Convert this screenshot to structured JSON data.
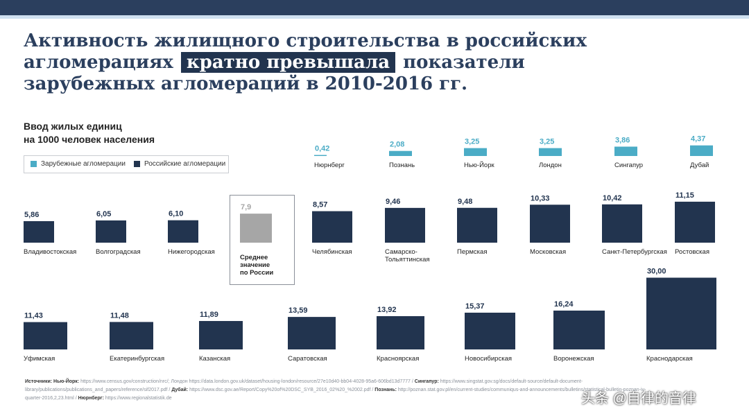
{
  "title": {
    "part1": "Активность жилищного строительства в российских агломерациях",
    "highlight": "кратно превышала",
    "part2": "показатели зарубежных агломераций в 2010-2016 гг."
  },
  "subtitle_line1": "Ввод жилых единиц",
  "subtitle_line2": "на 1000 человек населения",
  "colors": {
    "foreign": "#4bacc6",
    "russian": "#22344f",
    "average": "#a6a6a6"
  },
  "legend": {
    "foreign": "Зарубежные агломерации",
    "russian": "Российские агломерации"
  },
  "chart_data": {
    "type": "bar",
    "y_label": "Ввод жилых единиц на 1000 человек населения",
    "series": [
      {
        "name": "Зарубежные агломерации",
        "categories": [
          "Нюрнберг",
          "Познань",
          "Нью-Йорк",
          "Лондон",
          "Сингапур",
          "Дубай"
        ],
        "values": [
          0.42,
          2.08,
          3.25,
          3.25,
          3.86,
          4.37
        ],
        "labels": [
          "0,42",
          "2,08",
          "3,25",
          "3,25",
          "3,86",
          "4,37"
        ]
      },
      {
        "name": "Среднее значение по России",
        "categories": [
          "Среднее значение по России"
        ],
        "values": [
          7.9
        ],
        "labels": [
          "7,9"
        ]
      },
      {
        "name": "Российские агломерации",
        "categories": [
          "Владивостокская",
          "Волгоградская",
          "Нижегородская",
          "Челябинская",
          "Самарско-Тольяттинская",
          "Пермская",
          "Московская",
          "Санкт-Петербургская",
          "Ростовская",
          "Уфимская",
          "Екатеринбургская",
          "Казанская",
          "Саратовская",
          "Красноярская",
          "Новосибирская",
          "Воронежская",
          "Краснодарская"
        ],
        "values": [
          5.86,
          6.05,
          6.1,
          8.57,
          9.46,
          9.48,
          10.33,
          10.42,
          11.15,
          11.43,
          11.48,
          11.89,
          13.59,
          13.92,
          15.37,
          16.24,
          30.0
        ],
        "labels": [
          "5,86",
          "6,05",
          "6,10",
          "8,57",
          "9,46",
          "9,48",
          "10,33",
          "10,42",
          "11,15",
          "11,43",
          "11,48",
          "11,89",
          "13,59",
          "13,92",
          "15,37",
          "16,24",
          "30,00"
        ]
      }
    ],
    "average_label": [
      "Среднее",
      "значение",
      "по России"
    ]
  },
  "sources": [
    {
      "label": "Источники:",
      "text": ""
    },
    {
      "label": "Нью-Йорк:",
      "text": "https://www.census.gov/construction/nrc/; Лондон https://data.london.gov.uk/dataset/housing-london/resource/27e10d40-bb04-4028-95a6-606bd13d7777 /"
    },
    {
      "label": "Сингапур:",
      "text": "https://www.singstat.gov.sg/docs/default-source/default-document-library/publications/publications_and_papers/reference/sif2017.pdf /"
    },
    {
      "label": "Дубай:",
      "text": "https://www.dsc.gov.ae/Report/Copy%20of%20DSC_SYB_2016_02%20_%2002.pdf /"
    },
    {
      "label": "Познань:",
      "text": "http://poznan.stat.gov.pl/en/current-studies/communiqus-and-announcements/bulletins/statistical-bulletin-poznan-iv-quarter-2016,2,23.html /"
    },
    {
      "label": "Нюрнберг:",
      "text": "https://www.regionalstatistik.de"
    }
  ],
  "watermark": "头条 @自律的音律"
}
